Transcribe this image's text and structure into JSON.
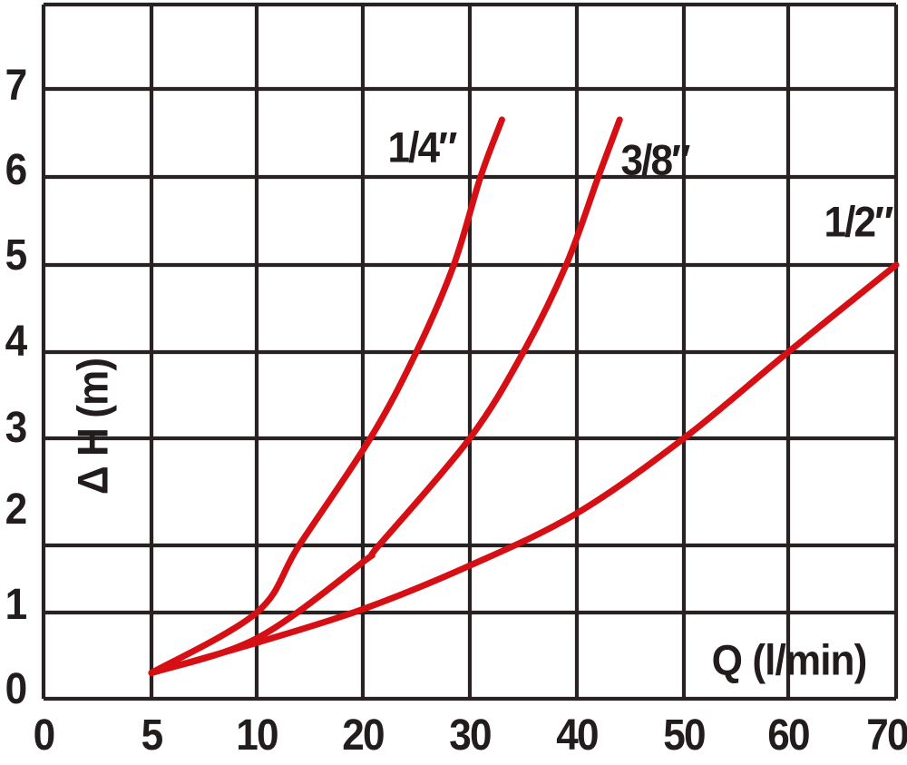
{
  "chart_data": {
    "type": "line",
    "title": "",
    "xlabel": "Q (l/min)",
    "ylabel": "Δ H (m)",
    "x_tick_labels": [
      "0",
      "5",
      "10",
      "20",
      "30",
      "40",
      "50",
      "60",
      "70"
    ],
    "x_tick_values": [
      0,
      5,
      10,
      20,
      30,
      40,
      50,
      60,
      70
    ],
    "x_axis_note": "tick marks equally spaced although value steps change from 5 to 10 after 10",
    "y_tick_labels": [
      "0",
      "1",
      "2",
      "3",
      "4",
      "5",
      "6",
      "7"
    ],
    "y_range": [
      0,
      7
    ],
    "grid": true,
    "legend_position": "labels-next-to-curves",
    "series": [
      {
        "name": "1/4″",
        "color": "#d50f14",
        "points": [
          [
            5,
            0.3
          ],
          [
            10,
            1.0
          ],
          [
            14,
            2.0
          ],
          [
            20.7,
            3.0
          ],
          [
            25,
            4.0
          ],
          [
            28.5,
            5.0
          ],
          [
            31,
            6.0
          ],
          [
            33,
            6.65
          ]
        ]
      },
      {
        "name": "3/8″",
        "color": "#d50f14",
        "points": [
          [
            5,
            0.3
          ],
          [
            10,
            0.7
          ],
          [
            20,
            1.75
          ],
          [
            21.5,
            2.0
          ],
          [
            30,
            3.0
          ],
          [
            35,
            4.0
          ],
          [
            39,
            5.0
          ],
          [
            42,
            6.0
          ],
          [
            44,
            6.65
          ]
        ]
      },
      {
        "name": "1/2″",
        "color": "#d50f14",
        "points": [
          [
            5,
            0.3
          ],
          [
            10,
            0.65
          ],
          [
            20,
            1.05
          ],
          [
            30,
            1.7
          ],
          [
            40,
            2.3
          ],
          [
            50,
            3.0
          ],
          [
            60,
            4.0
          ],
          [
            70,
            5.0
          ]
        ]
      }
    ],
    "colors": {
      "curve": "#d50f14",
      "grid": "#292223",
      "text": "#221c1d",
      "background": "#ffffff"
    }
  }
}
